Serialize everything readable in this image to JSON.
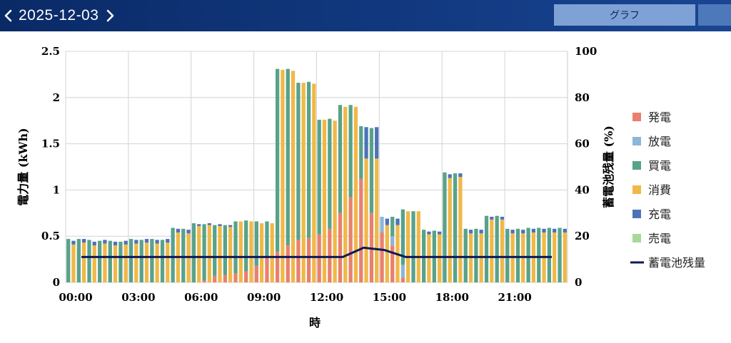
{
  "header": {
    "date": "2025-12-03",
    "prev_icon": "chevron-left-icon",
    "next_icon": "chevron-right-icon",
    "tabs": [
      {
        "label": "グラフ"
      },
      {
        "label": ""
      }
    ]
  },
  "colors": {
    "topbar": "#0f3276",
    "tab": "#7ea2d6",
    "generation": "#e8806e",
    "discharge": "#8db5d8",
    "purchase": "#58a28a",
    "consumption": "#f0b848",
    "charge": "#4d72b8",
    "sale": "#a6d99a",
    "battery_line": "#0e1a5a"
  },
  "chart_data": {
    "type": "bar",
    "title": "",
    "xlabel": "時",
    "ylabel": "電力量 (kWh)",
    "y2label": "蓄電池残量 (%)",
    "ylim": [
      0,
      2.5
    ],
    "y2lim": [
      0,
      100
    ],
    "yticks": [
      "0",
      "0.5",
      "1",
      "1.5",
      "2",
      "2.5"
    ],
    "y2ticks": [
      "0",
      "20",
      "40",
      "60",
      "80",
      "100"
    ],
    "x_tick_labels": [
      "00:00",
      "03:00",
      "06:00",
      "09:00",
      "12:00",
      "15:00",
      "18:00",
      "21:00"
    ],
    "categories": [
      "00:00",
      "00:30",
      "01:00",
      "01:30",
      "02:00",
      "02:30",
      "03:00",
      "03:30",
      "04:00",
      "04:30",
      "05:00",
      "05:30",
      "06:00",
      "06:30",
      "07:00",
      "07:30",
      "08:00",
      "08:30",
      "09:00",
      "09:30",
      "10:00",
      "10:30",
      "11:00",
      "11:30",
      "12:00",
      "12:30",
      "13:00",
      "13:30",
      "14:00",
      "14:30",
      "15:00",
      "15:30",
      "16:00",
      "16:30",
      "17:00",
      "17:30",
      "18:00",
      "18:30",
      "19:00",
      "19:30",
      "20:00",
      "20:30",
      "21:00",
      "21:30",
      "22:00",
      "22:30",
      "23:00",
      "23:30"
    ],
    "supply_series": [
      {
        "name": "発電",
        "values": [
          0,
          0,
          0,
          0,
          0,
          0,
          0,
          0,
          0,
          0,
          0,
          0,
          0,
          0.02,
          0.07,
          0.08,
          0.1,
          0.12,
          0.18,
          0.27,
          0.33,
          0.4,
          0.46,
          0.48,
          0.52,
          0.58,
          0.75,
          0.92,
          1.12,
          0.75,
          0.54,
          0.4,
          0.05,
          0,
          0,
          0,
          0,
          0,
          0,
          0,
          0,
          0,
          0,
          0,
          0,
          0,
          0,
          0
        ]
      },
      {
        "name": "放電",
        "values": [
          0,
          0,
          0,
          0,
          0,
          0,
          0,
          0,
          0,
          0,
          0,
          0,
          0,
          0,
          0,
          0,
          0,
          0,
          0,
          0,
          0,
          0,
          0,
          0,
          0,
          0,
          0,
          0,
          0,
          0,
          0.17,
          0.1,
          0.14,
          0,
          0,
          0,
          0,
          0,
          0,
          0,
          0,
          0,
          0,
          0,
          0,
          0,
          0,
          0
        ]
      },
      {
        "name": "買電",
        "values": [
          0.47,
          0.47,
          0.46,
          0.45,
          0.45,
          0.44,
          0.47,
          0.46,
          0.47,
          0.46,
          0.59,
          0.58,
          0.64,
          0.61,
          0.55,
          0.54,
          0.56,
          0.55,
          0.48,
          0.39,
          1.98,
          1.91,
          1.7,
          1.69,
          1.24,
          1.19,
          1.17,
          1.0,
          0.57,
          0.92,
          0,
          0.21,
          0.6,
          0.77,
          0.57,
          0.56,
          1.19,
          1.18,
          0.58,
          0.58,
          0.72,
          0.72,
          0.58,
          0.58,
          0.59,
          0.59,
          0.59,
          0.59
        ]
      },
      {
        "name": "売電",
        "values": [
          0,
          0,
          0,
          0,
          0,
          0,
          0,
          0,
          0,
          0,
          0,
          0,
          0,
          0,
          0,
          0,
          0,
          0,
          0,
          0,
          0,
          0,
          0,
          0,
          0,
          0,
          0,
          0,
          0,
          0,
          0,
          0,
          0,
          0,
          0,
          0,
          0,
          0,
          0,
          0,
          0,
          0,
          0,
          0,
          0,
          0,
          0,
          0
        ]
      }
    ],
    "usage_series": [
      {
        "name": "消費",
        "values": [
          0.41,
          0.43,
          0.4,
          0.42,
          0.4,
          0.41,
          0.42,
          0.43,
          0.42,
          0.43,
          0.54,
          0.53,
          0.61,
          0.62,
          0.61,
          0.6,
          0.66,
          0.66,
          0.64,
          0.64,
          2.3,
          2.29,
          2.16,
          2.15,
          1.76,
          1.75,
          1.9,
          1.9,
          1.34,
          1.34,
          0.62,
          0.62,
          0.77,
          0.77,
          0.52,
          0.52,
          1.13,
          1.14,
          0.53,
          0.53,
          0.68,
          0.68,
          0.53,
          0.53,
          0.54,
          0.54,
          0.54,
          0.54
        ]
      },
      {
        "name": "充電",
        "values": [
          0.04,
          0.04,
          0.04,
          0.04,
          0.04,
          0.04,
          0.04,
          0.04,
          0.04,
          0.04,
          0.04,
          0.04,
          0.02,
          0.02,
          0.02,
          0.02,
          0.0,
          0.0,
          0.0,
          0.0,
          0,
          0,
          0,
          0,
          0,
          0,
          0,
          0,
          0.34,
          0.34,
          0.07,
          0.07,
          0,
          0,
          0.03,
          0.03,
          0.04,
          0.04,
          0.04,
          0.04,
          0.03,
          0.03,
          0.04,
          0.04,
          0.04,
          0.04,
          0.04,
          0.04
        ]
      }
    ],
    "battery_series": {
      "name": "蓄電池残量",
      "x": [
        "00:30",
        "13:00",
        "14:00",
        "15:00",
        "16:00",
        "23:00"
      ],
      "values": [
        11,
        11,
        15,
        14,
        11,
        11
      ]
    },
    "legend": [
      "発電",
      "放電",
      "買電",
      "消費",
      "充電",
      "売電",
      "蓄電池残量"
    ],
    "legend_position": "right",
    "grid": true
  }
}
